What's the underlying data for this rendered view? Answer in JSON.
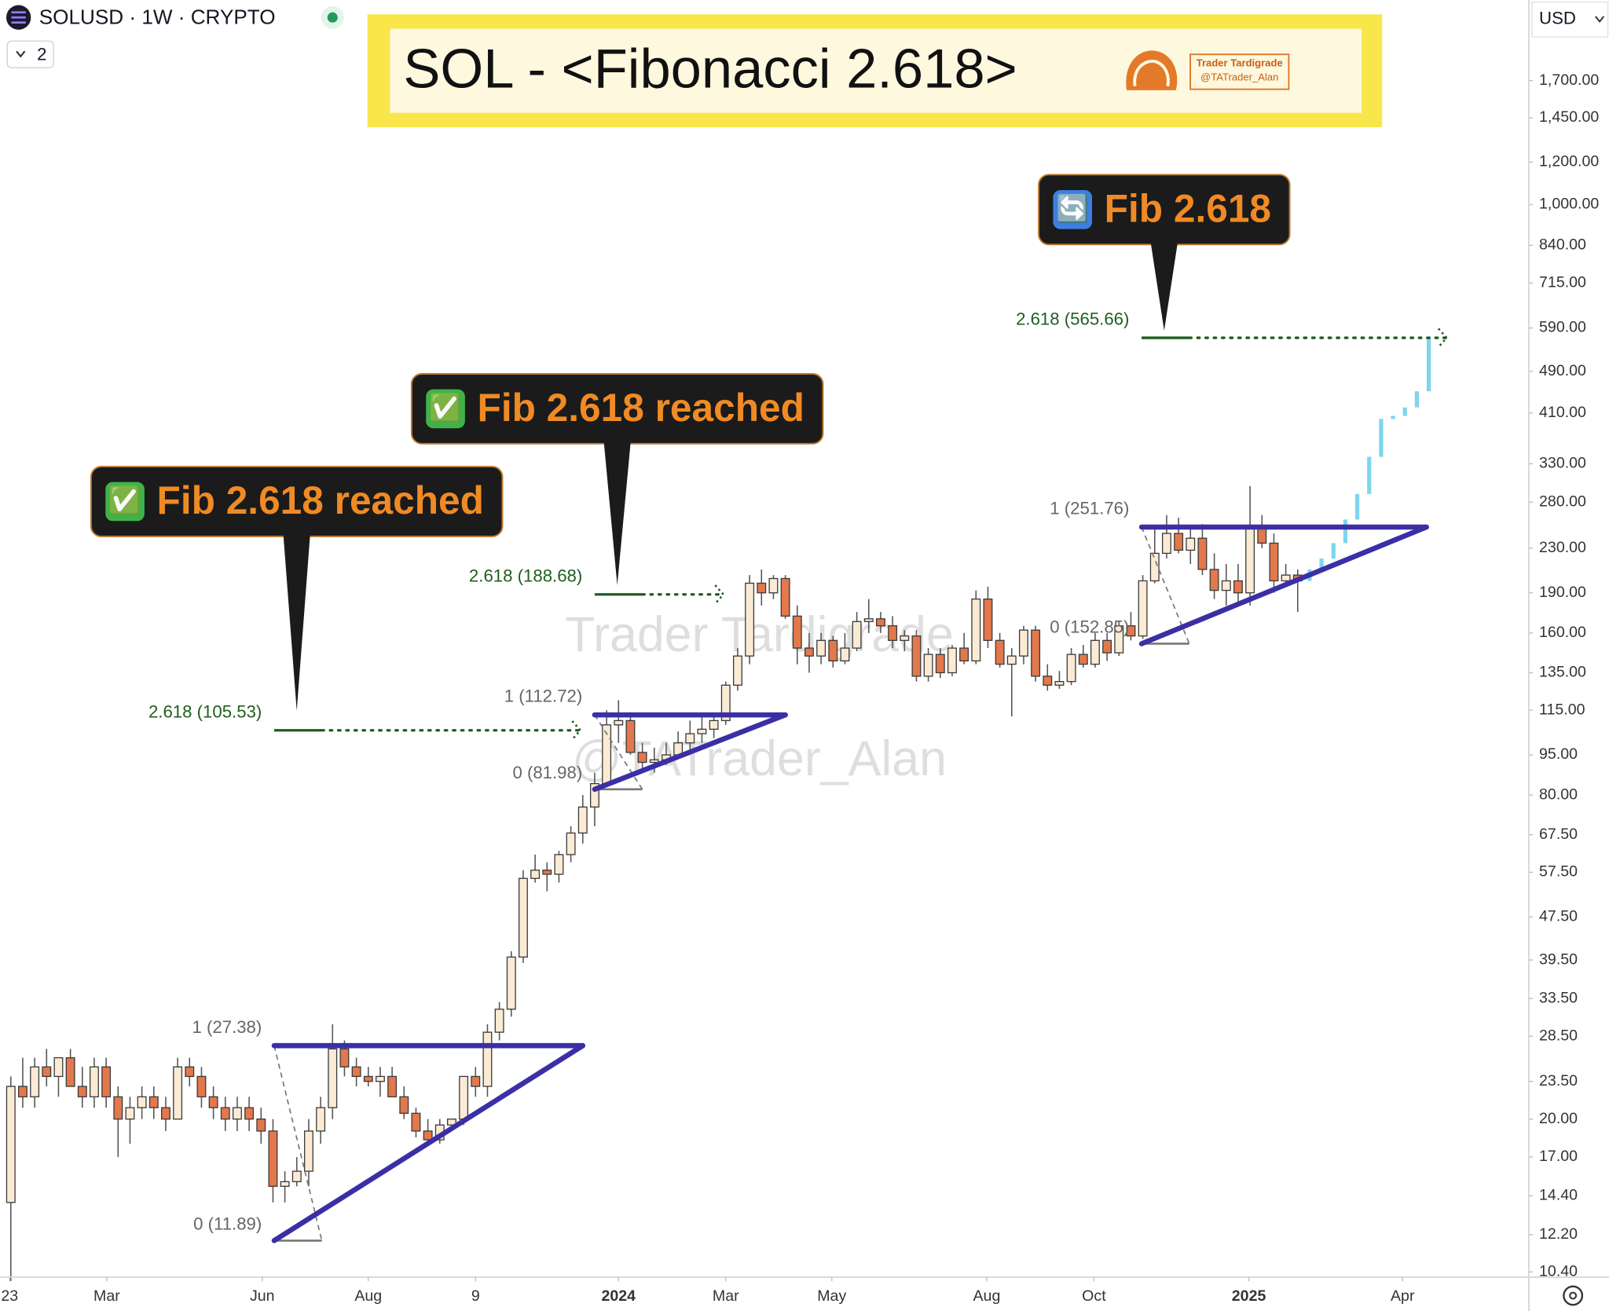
{
  "chart_data": {
    "type": "candlestick",
    "symbol": "SOLUSD · 1W · CRYPTO",
    "interval_count": "2",
    "currency": "USD",
    "title": "SOL - <Fibonacci 2.618>",
    "brand": {
      "name": "Trader Tardigrade",
      "handle": "@TATrader_Alan"
    },
    "watermark": [
      "Trader Tardigrade",
      "@TATrader_Alan"
    ],
    "log_scale": true,
    "ylim": [
      10.17,
      2400
    ],
    "yticks": [
      {
        "value": 10.4,
        "label": "10.40"
      },
      {
        "value": 12.2,
        "label": "12.20"
      },
      {
        "value": 14.4,
        "label": "14.40"
      },
      {
        "value": 17,
        "label": "17.00"
      },
      {
        "value": 20,
        "label": "20.00"
      },
      {
        "value": 23.5,
        "label": "23.50"
      },
      {
        "value": 28.5,
        "label": "28.50"
      },
      {
        "value": 33.5,
        "label": "33.50"
      },
      {
        "value": 39.5,
        "label": "39.50"
      },
      {
        "value": 47.5,
        "label": "47.50"
      },
      {
        "value": 57.5,
        "label": "57.50"
      },
      {
        "value": 67.5,
        "label": "67.50"
      },
      {
        "value": 80,
        "label": "80.00"
      },
      {
        "value": 95,
        "label": "95.00"
      },
      {
        "value": 115,
        "label": "115.00"
      },
      {
        "value": 135,
        "label": "135.00"
      },
      {
        "value": 160,
        "label": "160.00"
      },
      {
        "value": 190,
        "label": "190.00"
      },
      {
        "value": 230,
        "label": "230.00"
      },
      {
        "value": 280,
        "label": "280.00"
      },
      {
        "value": 330,
        "label": "330.00"
      },
      {
        "value": 410,
        "label": "410.00"
      },
      {
        "value": 490,
        "label": "490.00"
      },
      {
        "value": 590,
        "label": "590.00"
      },
      {
        "value": 715,
        "label": "715.00"
      },
      {
        "value": 840,
        "label": "840.00"
      },
      {
        "value": 1000,
        "label": "1,000.00"
      },
      {
        "value": 1200,
        "label": "1,200.00"
      },
      {
        "value": 1450,
        "label": "1,450.00"
      },
      {
        "value": 1700,
        "label": "1,700.00"
      }
    ],
    "xlim": [
      -0.9,
      127.4
    ],
    "xticks": [
      {
        "value": -0.1,
        "label": "23"
      },
      {
        "value": 8.05,
        "label": "Mar"
      },
      {
        "value": 21.1,
        "label": "Jun"
      },
      {
        "value": 30,
        "label": "Aug"
      },
      {
        "value": 39,
        "label": "9"
      },
      {
        "value": 51,
        "label": "2024"
      },
      {
        "value": 60,
        "label": "Mar"
      },
      {
        "value": 68.9,
        "label": "May"
      },
      {
        "value": 81.9,
        "label": "Aug"
      },
      {
        "value": 90.9,
        "label": "Oct"
      },
      {
        "value": 103.9,
        "label": "2025"
      },
      {
        "value": 116.8,
        "label": "Apr"
      }
    ],
    "up_color": "#fbebd4",
    "down_color": "#e2784c",
    "outline_color": "#3a3a3a",
    "candles": [
      [
        14,
        24,
        10,
        23
      ],
      [
        23,
        26,
        21,
        22
      ],
      [
        22,
        26,
        21,
        25
      ],
      [
        25,
        27,
        23,
        24
      ],
      [
        24,
        26,
        22,
        26
      ],
      [
        26,
        27,
        23,
        23
      ],
      [
        23,
        25,
        21,
        22
      ],
      [
        22,
        26,
        21,
        25
      ],
      [
        25,
        26,
        21,
        22
      ],
      [
        22,
        23,
        17,
        20
      ],
      [
        20,
        22,
        18,
        21
      ],
      [
        21,
        23,
        20,
        22
      ],
      [
        22,
        23,
        20,
        21
      ],
      [
        21,
        22,
        19,
        20
      ],
      [
        20,
        26,
        20,
        25
      ],
      [
        25,
        26,
        23,
        24
      ],
      [
        24,
        25,
        21,
        22
      ],
      [
        22,
        23,
        20,
        21
      ],
      [
        21,
        22,
        19,
        20
      ],
      [
        20,
        22,
        19,
        21
      ],
      [
        21,
        22,
        19,
        20
      ],
      [
        20,
        21,
        18,
        19
      ],
      [
        19,
        20,
        14,
        15
      ],
      [
        15,
        16,
        14,
        15.3
      ],
      [
        15.3,
        17,
        15,
        16
      ],
      [
        16,
        20,
        15,
        19
      ],
      [
        19,
        22,
        18,
        21
      ],
      [
        21,
        30,
        20,
        27
      ],
      [
        27,
        28,
        24,
        25
      ],
      [
        25,
        26,
        23,
        24
      ],
      [
        24,
        25,
        23,
        23.5
      ],
      [
        23.5,
        25,
        22,
        24
      ],
      [
        24,
        25,
        22,
        22
      ],
      [
        22,
        23,
        20,
        20.5
      ],
      [
        20.5,
        21,
        18.5,
        19
      ],
      [
        19,
        20,
        18,
        18.3
      ],
      [
        18.3,
        20,
        18,
        19.5
      ],
      [
        19.5,
        20,
        19,
        20
      ],
      [
        20,
        24,
        19.5,
        24
      ],
      [
        24,
        25,
        22,
        23
      ],
      [
        23,
        30,
        22,
        29
      ],
      [
        29,
        33,
        28,
        32
      ],
      [
        32,
        41,
        31,
        40
      ],
      [
        40,
        58,
        39,
        56
      ],
      [
        56,
        62,
        55,
        58
      ],
      [
        58,
        60,
        53,
        57
      ],
      [
        57,
        63,
        55,
        62
      ],
      [
        62,
        70,
        60,
        68
      ],
      [
        68,
        80,
        65,
        76
      ],
      [
        76,
        88,
        70,
        84
      ],
      [
        84,
        115,
        83,
        108
      ],
      [
        108,
        120,
        100,
        110
      ],
      [
        110,
        114,
        95,
        96
      ],
      [
        96,
        100,
        89,
        92
      ],
      [
        92,
        98,
        88,
        93
      ],
      [
        93,
        100,
        91,
        95
      ],
      [
        95,
        105,
        94,
        100
      ],
      [
        100,
        110,
        97,
        104
      ],
      [
        104,
        112,
        100,
        106
      ],
      [
        106,
        112,
        102,
        110
      ],
      [
        110,
        130,
        108,
        128
      ],
      [
        128,
        150,
        125,
        145
      ],
      [
        145,
        205,
        140,
        198
      ],
      [
        198,
        210,
        180,
        190
      ],
      [
        190,
        205,
        185,
        202
      ],
      [
        202,
        205,
        170,
        172
      ],
      [
        172,
        180,
        140,
        150
      ],
      [
        150,
        160,
        135,
        145
      ],
      [
        145,
        160,
        140,
        155
      ],
      [
        155,
        158,
        138,
        142
      ],
      [
        142,
        160,
        140,
        150
      ],
      [
        150,
        175,
        148,
        168
      ],
      [
        168,
        185,
        160,
        170
      ],
      [
        170,
        175,
        160,
        165
      ],
      [
        165,
        172,
        150,
        155
      ],
      [
        155,
        162,
        148,
        158
      ],
      [
        158,
        162,
        130,
        133
      ],
      [
        133,
        150,
        130,
        146
      ],
      [
        146,
        150,
        132,
        135
      ],
      [
        135,
        152,
        133,
        150
      ],
      [
        150,
        160,
        140,
        142
      ],
      [
        142,
        192,
        140,
        185
      ],
      [
        185,
        195,
        150,
        155
      ],
      [
        155,
        160,
        138,
        140
      ],
      [
        140,
        150,
        112,
        145
      ],
      [
        145,
        165,
        140,
        162
      ],
      [
        162,
        165,
        130,
        133
      ],
      [
        133,
        140,
        125,
        128
      ],
      [
        128,
        136,
        126,
        130
      ],
      [
        130,
        150,
        128,
        146
      ],
      [
        146,
        152,
        138,
        140
      ],
      [
        140,
        160,
        138,
        155
      ],
      [
        155,
        160,
        142,
        147
      ],
      [
        147,
        168,
        145,
        165
      ],
      [
        165,
        175,
        155,
        158
      ],
      [
        158,
        205,
        156,
        200
      ],
      [
        200,
        250,
        198,
        225
      ],
      [
        225,
        265,
        220,
        245
      ],
      [
        245,
        262,
        225,
        228
      ],
      [
        228,
        250,
        215,
        240
      ],
      [
        240,
        255,
        205,
        210
      ],
      [
        210,
        225,
        185,
        192
      ],
      [
        192,
        215,
        180,
        200
      ],
      [
        200,
        215,
        180,
        190
      ],
      [
        190,
        300,
        180,
        250
      ],
      [
        250,
        265,
        230,
        235
      ],
      [
        235,
        245,
        190,
        200
      ],
      [
        200,
        215,
        195,
        205
      ],
      [
        205,
        210,
        175,
        200
      ]
    ],
    "projection": {
      "color": "#7dd6ee",
      "values": [
        210,
        220,
        235,
        260,
        290,
        340,
        400,
        405,
        420,
        450,
        565
      ]
    },
    "triangle_color": "#3b2fa6",
    "target_color": "#1f5e1f",
    "fibs": [
      {
        "x": [
          22.1,
          48
        ],
        "target_end": 47.8,
        "levels": [
          {
            "value": 11.89,
            "label": "0 (11.89)"
          },
          {
            "value": 27.38,
            "label": "1 (27.38)"
          },
          {
            "value": 105.53,
            "label": "2.618 (105.53)"
          }
        ],
        "callout": {
          "icon": "✅",
          "text": "Fib 2.618 reached"
        }
      },
      {
        "x": [
          49,
          65
        ],
        "target_end": 59.8,
        "levels": [
          {
            "value": 81.98,
            "label": "0 (81.98)"
          },
          {
            "value": 112.72,
            "label": "1 (112.72)"
          },
          {
            "value": 188.68,
            "label": "2.618 (188.68)"
          }
        ],
        "callout": {
          "icon": "✅",
          "text": "Fib 2.618 reached"
        }
      },
      {
        "x": [
          94.9,
          118.8
        ],
        "target_end": 120.5,
        "levels": [
          {
            "value": 152.85,
            "label": "0 (152.85)"
          },
          {
            "value": 251.76,
            "label": "1 (251.76)"
          },
          {
            "value": 565.66,
            "label": "2.618 (565.66)"
          }
        ],
        "callout": {
          "icon": "🔄",
          "text": "Fib 2.618"
        }
      }
    ]
  }
}
